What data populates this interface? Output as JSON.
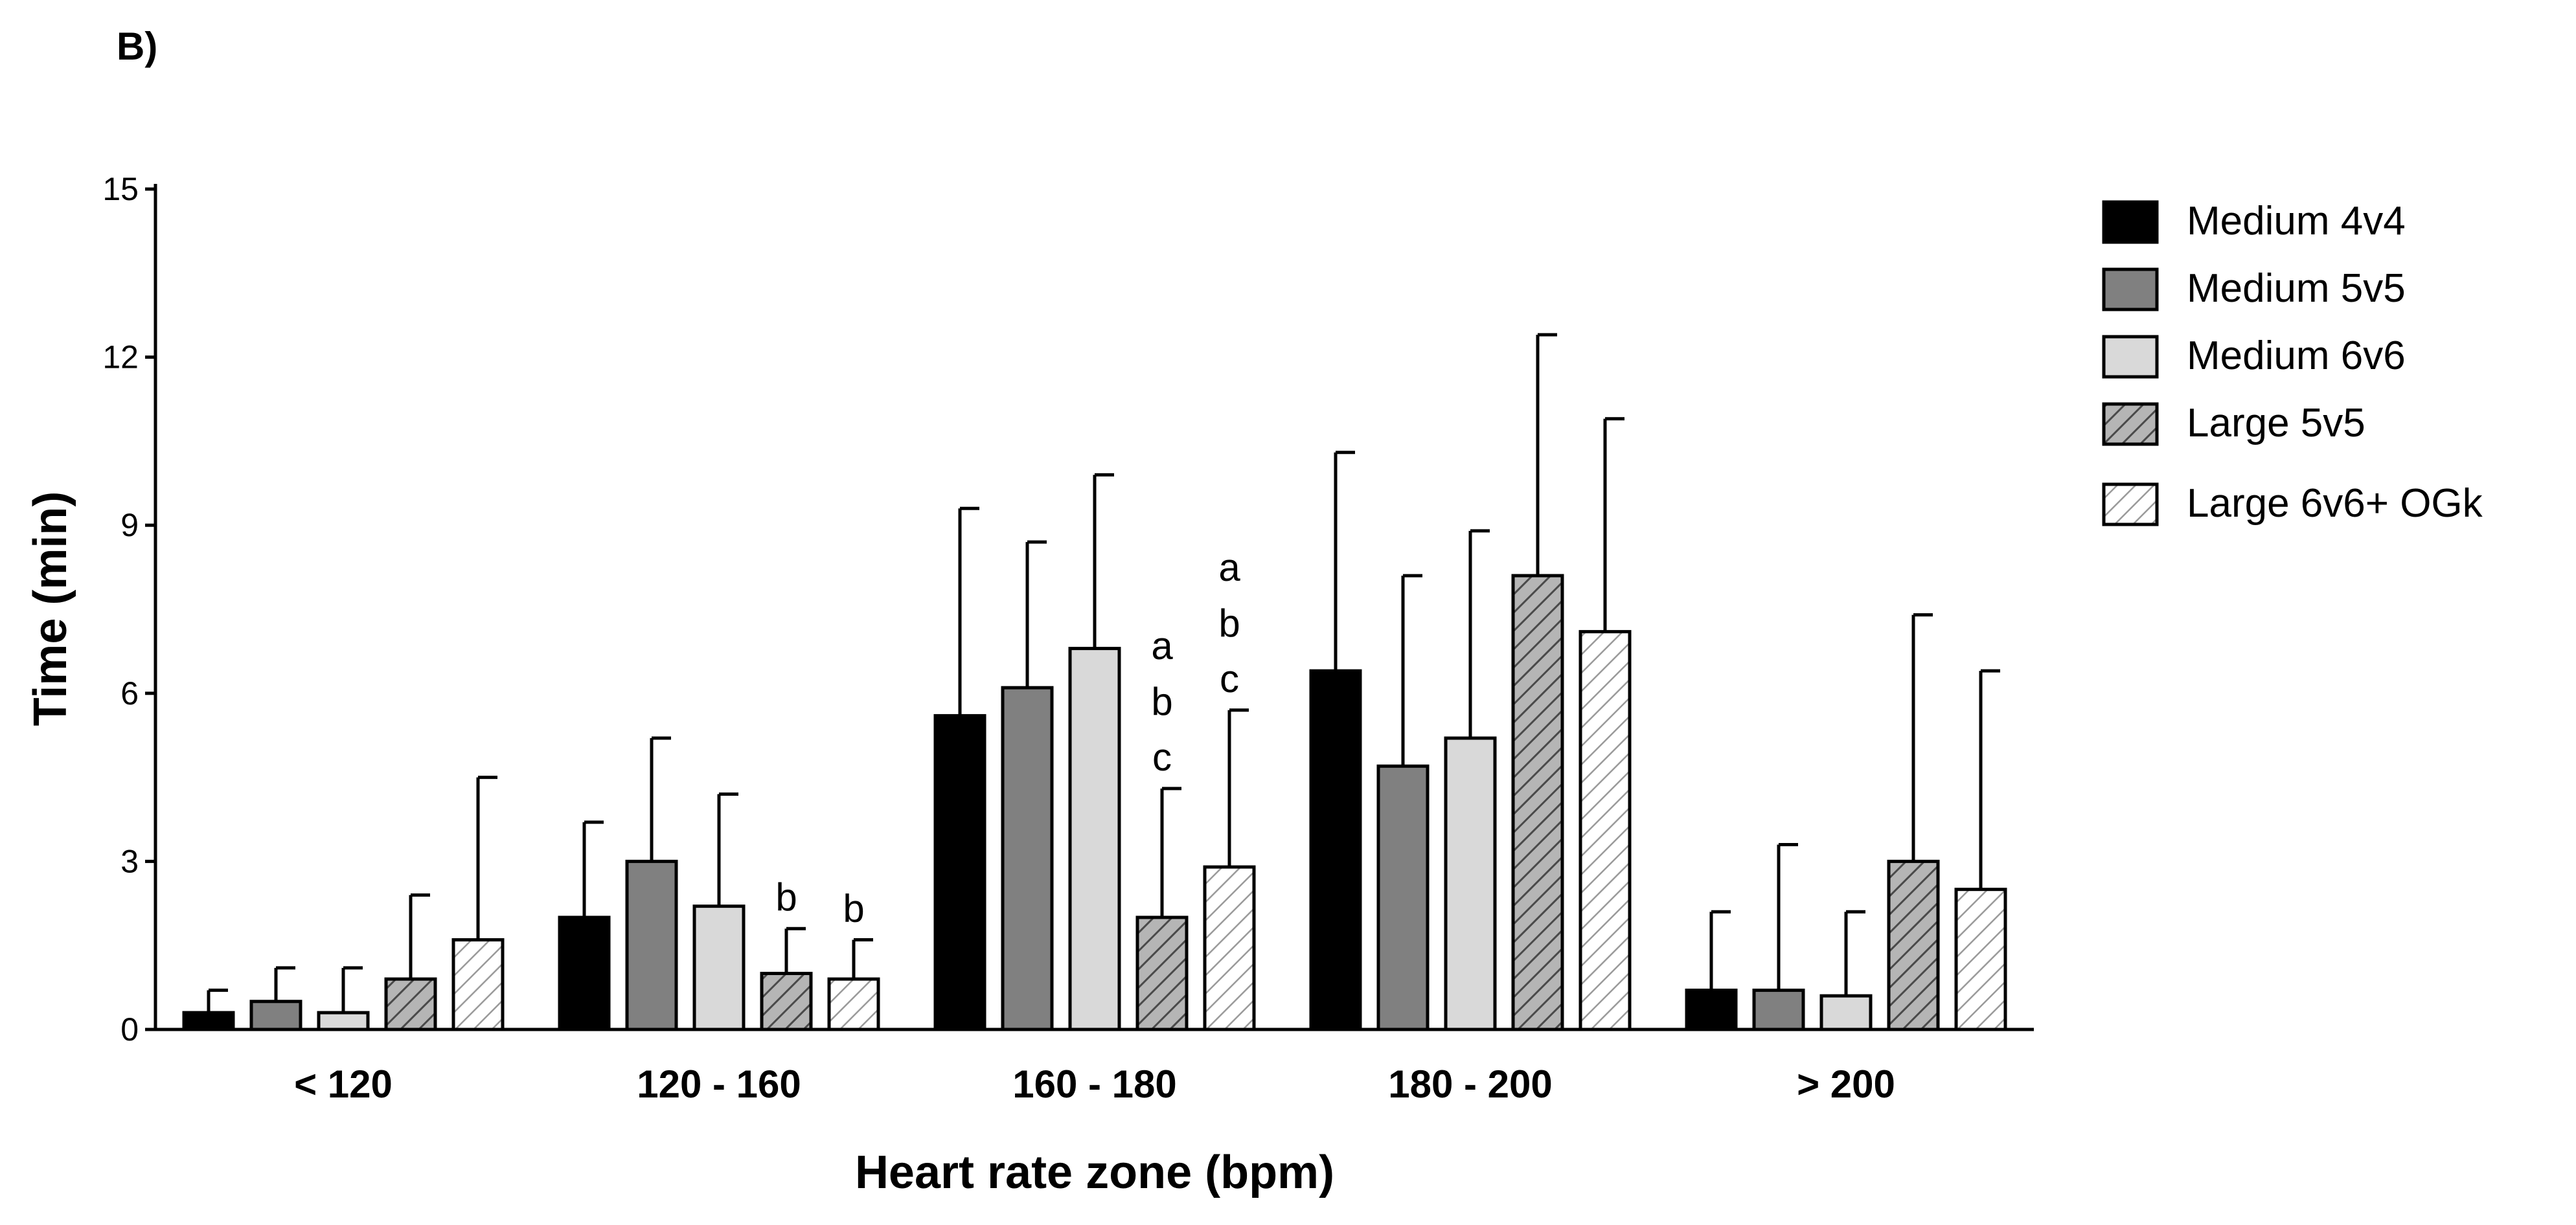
{
  "panel_label": "B)",
  "chart_data": {
    "type": "bar",
    "title": "",
    "xlabel": "Heart rate zone (bpm)",
    "ylabel": "Time (min)",
    "ylim": [
      0,
      15
    ],
    "yticks": [
      0,
      3,
      6,
      9,
      12,
      15
    ],
    "grid": false,
    "legend_position": "right",
    "categories": [
      "< 120",
      "120 - 160",
      "160 - 180",
      "180 - 200",
      "> 200"
    ],
    "series": [
      {
        "name": "Medium 4v4",
        "fill": "#000000",
        "hatch": false,
        "values": [
          0.3,
          2.0,
          5.6,
          6.4,
          0.7
        ],
        "errors": [
          0.4,
          1.7,
          3.7,
          3.9,
          1.4
        ]
      },
      {
        "name": "Medium 5v5",
        "fill": "#808080",
        "hatch": false,
        "values": [
          0.5,
          3.0,
          6.1,
          4.7,
          0.7
        ],
        "errors": [
          0.6,
          2.2,
          2.6,
          3.4,
          2.6
        ]
      },
      {
        "name": "Medium 6v6",
        "fill": "#d9d9d9",
        "hatch": false,
        "values": [
          0.3,
          2.2,
          6.8,
          5.2,
          0.6
        ],
        "errors": [
          0.8,
          2.0,
          3.1,
          3.7,
          1.5
        ]
      },
      {
        "name": "Large 5v5",
        "fill": "#b0b0b0",
        "hatch": true,
        "values": [
          0.9,
          1.0,
          2.0,
          8.1,
          3.0
        ],
        "errors": [
          1.5,
          0.8,
          2.3,
          4.3,
          4.4
        ]
      },
      {
        "name": "Large 6v6+ OGk",
        "fill": "#ffffff",
        "hatch": true,
        "values": [
          1.6,
          0.9,
          2.9,
          7.1,
          2.5
        ],
        "errors": [
          2.9,
          0.7,
          2.8,
          3.8,
          3.9
        ]
      }
    ],
    "annotations": [
      {
        "category": "120 - 160",
        "series": "Large 5v5",
        "lines": [
          "b"
        ]
      },
      {
        "category": "120 - 160",
        "series": "Large 6v6+ OGk",
        "lines": [
          "b"
        ]
      },
      {
        "category": "160 - 180",
        "series": "Large 5v5",
        "lines": [
          "a",
          "b",
          "c"
        ]
      },
      {
        "category": "160 - 180",
        "series": "Large 6v6+ OGk",
        "lines": [
          "a",
          "b",
          "c"
        ]
      }
    ]
  }
}
